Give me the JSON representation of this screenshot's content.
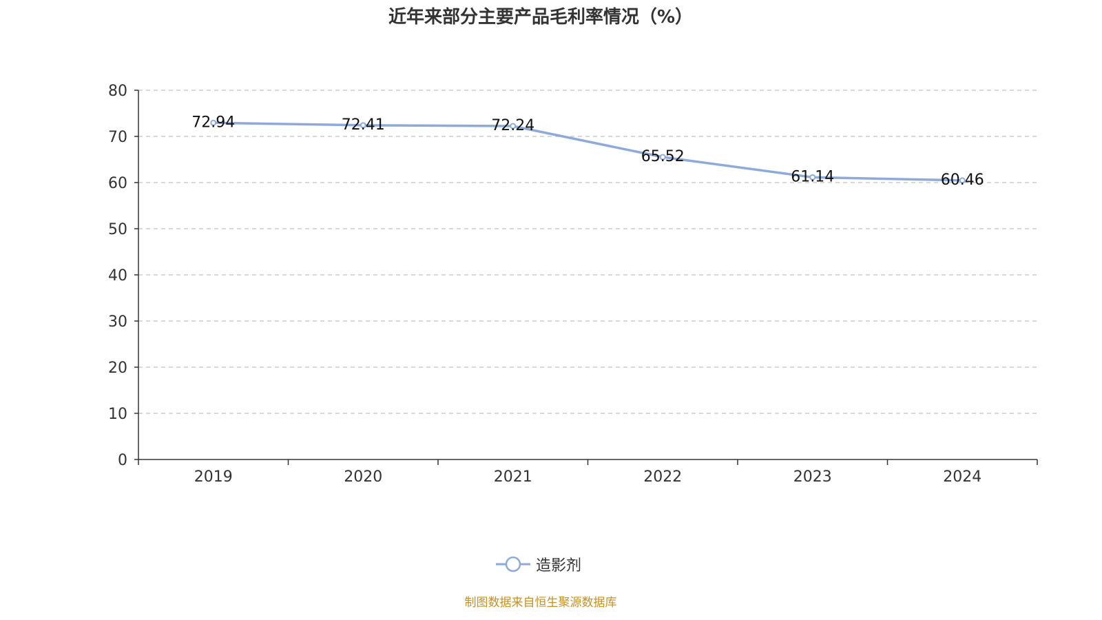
{
  "chart_data": {
    "type": "line",
    "title": "近年来部分主要产品毛利率情况（%）",
    "categories": [
      "2019",
      "2020",
      "2021",
      "2022",
      "2023",
      "2024"
    ],
    "series": [
      {
        "name": "造影剂",
        "values": [
          72.94,
          72.41,
          72.24,
          65.52,
          61.14,
          60.46
        ],
        "color": "#8eaadb"
      }
    ],
    "ylim": [
      0,
      80
    ],
    "yticks": [
      0,
      10,
      20,
      30,
      40,
      50,
      60,
      70,
      80
    ],
    "grid": true,
    "legend_position": "bottom",
    "data_labels": true
  },
  "source": "制图数据来自恒生聚源数据库"
}
